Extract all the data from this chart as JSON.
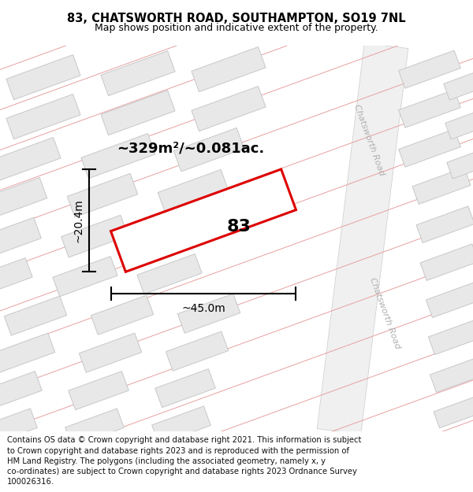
{
  "title": "83, CHATSWORTH ROAD, SOUTHAMPTON, SO19 7NL",
  "subtitle": "Map shows position and indicative extent of the property.",
  "footer": "Contains OS data © Crown copyright and database right 2021. This information is subject to Crown copyright and database rights 2023 and is reproduced with the permission of HM Land Registry. The polygons (including the associated geometry, namely x, y co-ordinates) are subject to Crown copyright and database rights 2023 Ordnance Survey 100026316.",
  "area_text": "~329m²/~0.081ac.",
  "width_text": "~45.0m",
  "height_text": "~20.4m",
  "label_83": "83",
  "map_bg": "#ffffff",
  "road_fill": "#f0f0f0",
  "road_edge": "#cccccc",
  "property_line_color": "#e8a0a0",
  "building_fill": "#e8e8e8",
  "building_stroke": "#c8c8c8",
  "highlight_color": "#dd0000",
  "highlight_fill": "#ffffff",
  "road_label_color": "#b0b0b0",
  "title_fontsize": 10.5,
  "subtitle_fontsize": 9,
  "footer_fontsize": 7.2,
  "area_fontsize": 13,
  "dim_fontsize": 10,
  "label_fontsize": 16
}
